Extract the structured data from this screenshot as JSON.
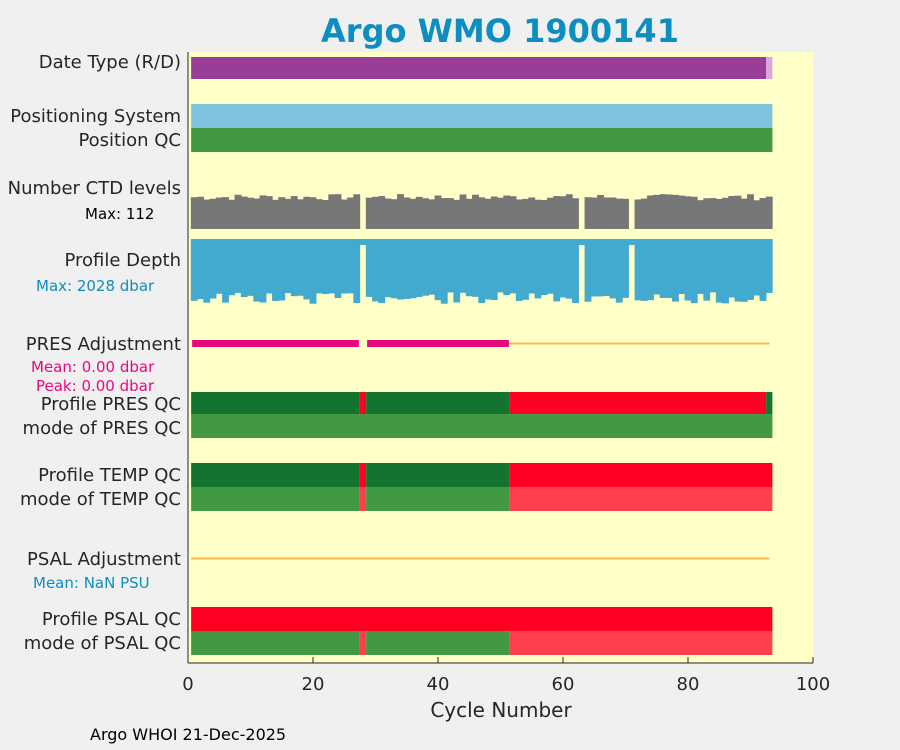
{
  "title": "Argo WMO 1900141",
  "footer": "Argo WHOI 21-Dec-2025",
  "colors": {
    "background": "#ffffc8",
    "title": "#0d8ec0",
    "delayed": "#993d99",
    "realtime_end": "#dba6db",
    "positioning": "#7ec4de",
    "qc_good_light": "#439843",
    "qc_good_dark": "#137430",
    "qc_bad": "#ff0022",
    "qc_bad_light": "#ff414f",
    "ctd": "#777777",
    "depth": "#42a9cf",
    "pres_adj": "#e8087e",
    "adj_zero": "#ffb64e",
    "pres_stats": "#e8087e",
    "psal_stats": "#0d8ec0"
  },
  "chart_data": {
    "type": "bar",
    "xlabel": "Cycle Number",
    "xlim": [
      0,
      100
    ],
    "xticks": [
      0,
      20,
      40,
      60,
      80,
      100
    ],
    "ncycles": 93,
    "gaps": [
      28
    ],
    "rows": [
      {
        "label": "Date Type (R/D)",
        "segments": [
          {
            "from": 1,
            "to": 92,
            "value": "D"
          },
          {
            "from": 93,
            "to": 93,
            "value": "R"
          }
        ]
      },
      {
        "label": "Positioning System",
        "segments": [
          {
            "from": 1,
            "to": 93,
            "value": "ARGOS"
          }
        ]
      },
      {
        "label": "Position QC",
        "segments": [
          {
            "from": 1,
            "to": 93,
            "value": "1"
          }
        ]
      },
      {
        "label": "Number CTD levels",
        "max_label": "Max: 112",
        "max": 112,
        "gaps": [
          28,
          63,
          71
        ]
      },
      {
        "label": "Profile Depth",
        "max_label": "Max: 2028 dbar",
        "max": 2028,
        "gaps": [
          28,
          63,
          71
        ]
      },
      {
        "label": "PRES Adjustment",
        "stats": [
          "Mean: 0.00 dbar",
          "Peak: 0.00 dbar"
        ],
        "adjusted_cycles": [
          [
            1,
            27
          ],
          [
            29,
            51
          ]
        ],
        "zero_range": [
          51,
          93
        ]
      },
      {
        "label": "Profile PRES QC",
        "segments": [
          {
            "from": 1,
            "to": 27,
            "value": "A"
          },
          {
            "from": 28,
            "to": 28,
            "value": "F"
          },
          {
            "from": 29,
            "to": 51,
            "value": "A"
          },
          {
            "from": 52,
            "to": 92,
            "value": "F"
          },
          {
            "from": 93,
            "to": 93,
            "value": "A"
          }
        ]
      },
      {
        "label": "mode of PRES QC",
        "segments": [
          {
            "from": 1,
            "to": 93,
            "value": "1"
          }
        ]
      },
      {
        "label": "Profile TEMP QC",
        "segments": [
          {
            "from": 1,
            "to": 27,
            "value": "A"
          },
          {
            "from": 28,
            "to": 28,
            "value": "F"
          },
          {
            "from": 29,
            "to": 51,
            "value": "A"
          },
          {
            "from": 52,
            "to": 93,
            "value": "F"
          }
        ]
      },
      {
        "label": "mode of TEMP QC",
        "segments": [
          {
            "from": 1,
            "to": 27,
            "value": "1"
          },
          {
            "from": 28,
            "to": 28,
            "value": "4"
          },
          {
            "from": 29,
            "to": 51,
            "value": "1"
          },
          {
            "from": 52,
            "to": 93,
            "value": "4"
          }
        ]
      },
      {
        "label": "PSAL Adjustment",
        "stats": [
          "Mean:  NaN PSU"
        ],
        "zero_range": [
          1,
          93
        ]
      },
      {
        "label": "Profile PSAL QC",
        "segments": [
          {
            "from": 1,
            "to": 93,
            "value": "F"
          }
        ]
      },
      {
        "label": "mode of PSAL QC",
        "segments": [
          {
            "from": 1,
            "to": 27,
            "value": "1"
          },
          {
            "from": 28,
            "to": 28,
            "value": "4"
          },
          {
            "from": 29,
            "to": 51,
            "value": "1"
          },
          {
            "from": 52,
            "to": 93,
            "value": "4"
          }
        ]
      }
    ]
  }
}
